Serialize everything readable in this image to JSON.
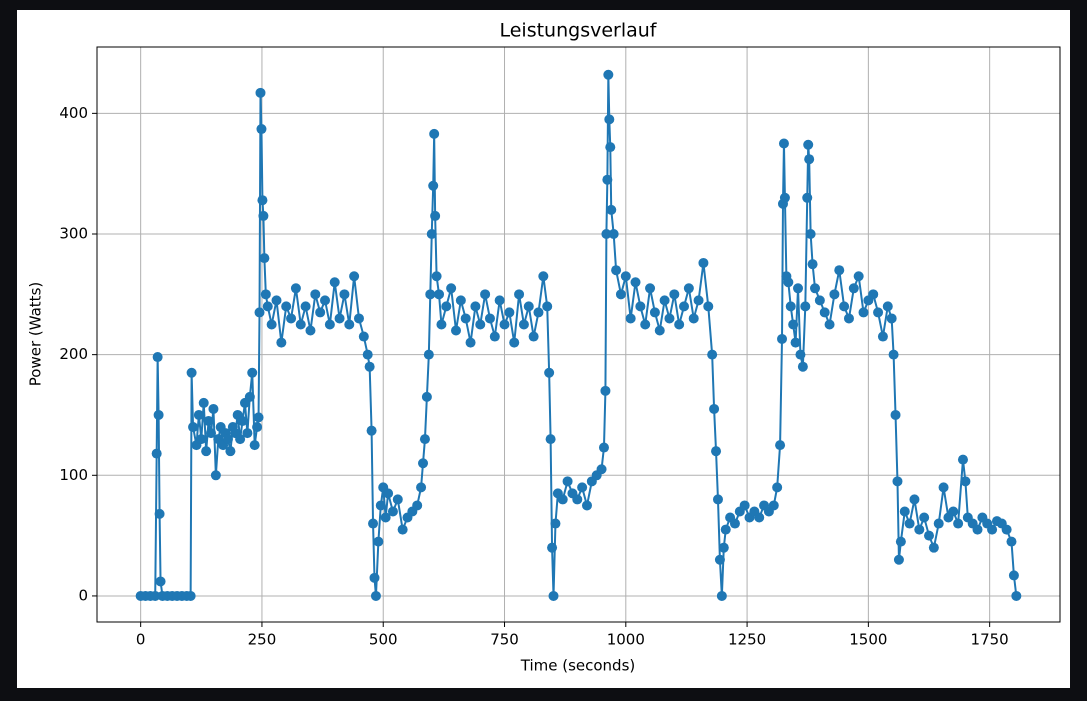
{
  "chart_data": {
    "type": "line",
    "title": "Leistungsverlauf",
    "xlabel": "Time (seconds)",
    "ylabel": "Power (Watts)",
    "x": [
      0,
      10,
      20,
      30,
      33,
      35,
      37,
      39,
      41,
      45,
      55,
      65,
      75,
      85,
      95,
      103,
      105,
      108,
      115,
      120,
      125,
      130,
      135,
      140,
      145,
      150,
      155,
      160,
      165,
      170,
      175,
      180,
      185,
      190,
      195,
      200,
      205,
      210,
      215,
      220,
      225,
      230,
      235,
      240,
      243,
      245,
      247,
      249,
      251,
      253,
      255,
      258,
      262,
      270,
      280,
      290,
      300,
      310,
      320,
      330,
      340,
      350,
      360,
      370,
      380,
      390,
      400,
      410,
      420,
      430,
      440,
      450,
      460,
      468,
      472,
      476,
      479,
      482,
      485,
      490,
      495,
      500,
      505,
      510,
      520,
      530,
      540,
      550,
      560,
      570,
      578,
      582,
      586,
      590,
      594,
      597,
      600,
      603,
      605,
      607,
      610,
      615,
      620,
      630,
      640,
      650,
      660,
      670,
      680,
      690,
      700,
      710,
      720,
      730,
      740,
      750,
      760,
      770,
      780,
      790,
      800,
      810,
      820,
      830,
      838,
      842,
      845,
      848,
      851,
      855,
      860,
      870,
      880,
      890,
      900,
      910,
      920,
      930,
      940,
      950,
      955,
      958,
      960,
      962,
      964,
      966,
      968,
      970,
      975,
      980,
      990,
      1000,
      1010,
      1020,
      1030,
      1040,
      1050,
      1060,
      1070,
      1080,
      1090,
      1100,
      1110,
      1120,
      1130,
      1140,
      1150,
      1160,
      1170,
      1178,
      1182,
      1186,
      1190,
      1194,
      1198,
      1202,
      1206,
      1215,
      1225,
      1235,
      1245,
      1255,
      1265,
      1275,
      1285,
      1295,
      1305,
      1312,
      1318,
      1322,
      1324,
      1326,
      1328,
      1331,
      1335,
      1340,
      1345,
      1350,
      1355,
      1360,
      1365,
      1370,
      1374,
      1376,
      1378,
      1381,
      1385,
      1390,
      1400,
      1410,
      1420,
      1430,
      1440,
      1450,
      1460,
      1470,
      1480,
      1490,
      1500,
      1510,
      1520,
      1530,
      1540,
      1548,
      1552,
      1556,
      1560,
      1563,
      1567,
      1575,
      1585,
      1595,
      1605,
      1615,
      1625,
      1635,
      1645,
      1655,
      1665,
      1675,
      1685,
      1695,
      1700,
      1705,
      1715,
      1725,
      1735,
      1745,
      1755,
      1765,
      1775,
      1785,
      1795,
      1800,
      1805
    ],
    "values": [
      0,
      0,
      0,
      0,
      118,
      198,
      150,
      68,
      12,
      0,
      0,
      0,
      0,
      0,
      0,
      0,
      185,
      140,
      125,
      150,
      130,
      160,
      120,
      145,
      135,
      155,
      100,
      130,
      140,
      125,
      135,
      130,
      120,
      140,
      135,
      150,
      130,
      145,
      160,
      135,
      165,
      185,
      125,
      140,
      148,
      235,
      417,
      387,
      328,
      315,
      280,
      250,
      240,
      225,
      245,
      210,
      240,
      230,
      255,
      225,
      240,
      220,
      250,
      235,
      245,
      225,
      260,
      230,
      250,
      225,
      265,
      230,
      215,
      200,
      190,
      137,
      60,
      15,
      0,
      45,
      75,
      90,
      65,
      85,
      70,
      80,
      55,
      65,
      70,
      75,
      90,
      110,
      130,
      165,
      200,
      250,
      300,
      340,
      383,
      315,
      265,
      250,
      225,
      240,
      255,
      220,
      245,
      230,
      210,
      240,
      225,
      250,
      230,
      215,
      245,
      225,
      235,
      210,
      250,
      225,
      240,
      215,
      235,
      265,
      240,
      185,
      130,
      40,
      0,
      60,
      85,
      80,
      95,
      85,
      80,
      90,
      75,
      95,
      100,
      105,
      123,
      170,
      300,
      345,
      432,
      395,
      372,
      320,
      300,
      270,
      250,
      265,
      230,
      260,
      240,
      225,
      255,
      235,
      220,
      245,
      230,
      250,
      225,
      240,
      255,
      230,
      245,
      276,
      240,
      200,
      155,
      120,
      80,
      30,
      0,
      40,
      55,
      65,
      60,
      70,
      75,
      65,
      70,
      65,
      75,
      70,
      75,
      90,
      125,
      213,
      325,
      375,
      330,
      265,
      260,
      240,
      225,
      210,
      255,
      200,
      190,
      240,
      330,
      374,
      362,
      300,
      275,
      255,
      245,
      235,
      225,
      250,
      270,
      240,
      230,
      255,
      265,
      235,
      245,
      250,
      235,
      215,
      240,
      230,
      200,
      150,
      95,
      30,
      45,
      70,
      60,
      80,
      55,
      65,
      50,
      40,
      60,
      90,
      65,
      70,
      60,
      113,
      95,
      65,
      60,
      55,
      65,
      60,
      55,
      62,
      60,
      55,
      45,
      17,
      0
    ],
    "color": "#1f77b4",
    "xlim": [
      -90,
      1895
    ],
    "ylim": [
      -21.6,
      455
    ],
    "xticks": [
      0,
      250,
      500,
      750,
      1000,
      1250,
      1500,
      1750
    ],
    "yticks": [
      0,
      100,
      200,
      300,
      400
    ],
    "grid": true
  }
}
